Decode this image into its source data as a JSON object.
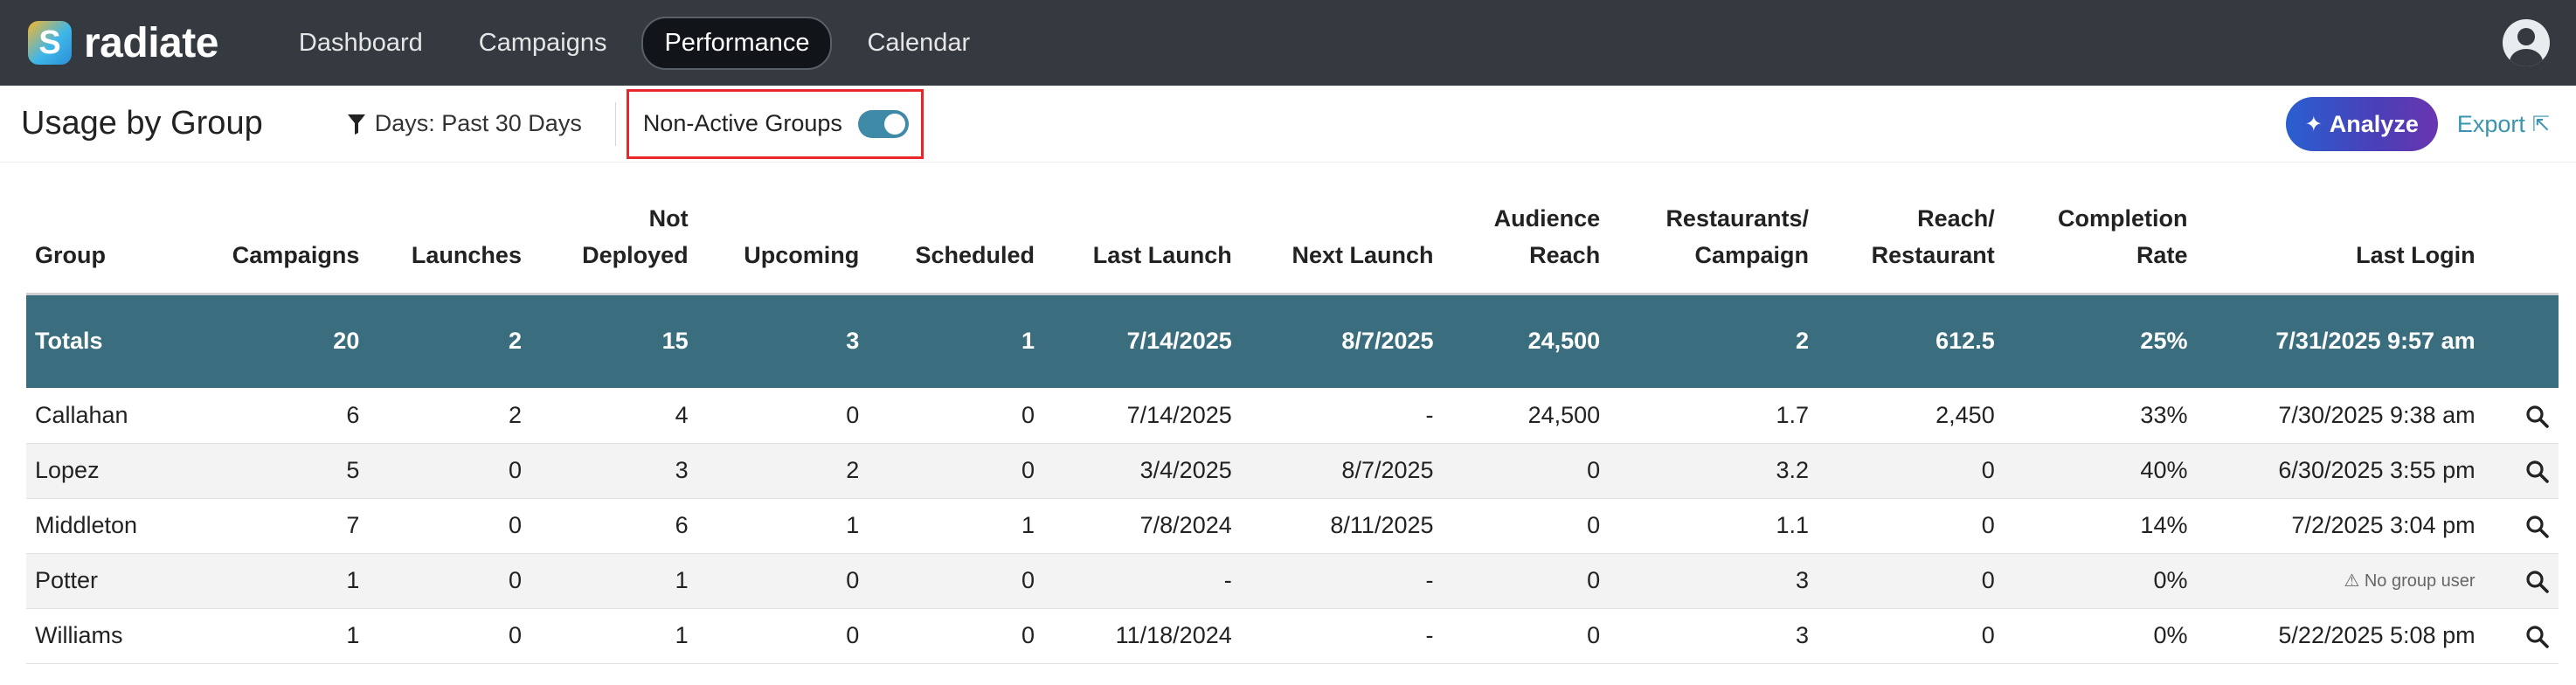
{
  "app": {
    "name": "radiate",
    "logo_letter": "S"
  },
  "nav": {
    "tabs": [
      {
        "label": "Dashboard"
      },
      {
        "label": "Campaigns"
      },
      {
        "label": "Performance"
      },
      {
        "label": "Calendar"
      }
    ],
    "active": "Performance"
  },
  "header": {
    "title": "Usage by Group",
    "filter_label": "Days: Past 30 Days",
    "toggle_label": "Non-Active Groups",
    "toggle_on": true,
    "analyze_label": "Analyze",
    "export_label": "Export"
  },
  "table": {
    "columns": {
      "group": "Group",
      "campaigns": "Campaigns",
      "launches": "Launches",
      "not_deployed_1": "Not",
      "not_deployed_2": "Deployed",
      "upcoming": "Upcoming",
      "scheduled": "Scheduled",
      "last_launch": "Last Launch",
      "next_launch": "Next Launch",
      "audience_1": "Audience",
      "audience_2": "Reach",
      "rpc_1": "Restaurants/",
      "rpc_2": "Campaign",
      "rpr_1": "Reach/",
      "rpr_2": "Restaurant",
      "completion_1": "Completion",
      "completion_2": "Rate",
      "last_login": "Last Login"
    },
    "totals": {
      "group": "Totals",
      "campaigns": "20",
      "launches": "2",
      "not_deployed": "15",
      "upcoming": "3",
      "scheduled": "1",
      "last_launch": "7/14/2025",
      "next_launch": "8/7/2025",
      "audience_reach": "24,500",
      "restaurants_per_campaign": "2",
      "reach_per_restaurant": "612.5",
      "completion_rate": "25%",
      "last_login": "7/31/2025 9:57 am"
    },
    "rows": [
      {
        "group": "Callahan",
        "campaigns": "6",
        "launches": "2",
        "not_deployed": "4",
        "upcoming": "0",
        "scheduled": "0",
        "last_launch": "7/14/2025",
        "next_launch": "-",
        "audience_reach": "24,500",
        "restaurants_per_campaign": "1.7",
        "reach_per_restaurant": "2,450",
        "completion_rate": "33%",
        "last_login": "7/30/2025 9:38 am"
      },
      {
        "group": "Lopez",
        "campaigns": "5",
        "launches": "0",
        "not_deployed": "3",
        "upcoming": "2",
        "scheduled": "0",
        "last_launch": "3/4/2025",
        "next_launch": "8/7/2025",
        "audience_reach": "0",
        "restaurants_per_campaign": "3.2",
        "reach_per_restaurant": "0",
        "completion_rate": "40%",
        "last_login": "6/30/2025 3:55 pm"
      },
      {
        "group": "Middleton",
        "campaigns": "7",
        "launches": "0",
        "not_deployed": "6",
        "upcoming": "1",
        "scheduled": "1",
        "last_launch": "7/8/2024",
        "next_launch": "8/11/2025",
        "audience_reach": "0",
        "restaurants_per_campaign": "1.1",
        "reach_per_restaurant": "0",
        "completion_rate": "14%",
        "last_login": "7/2/2025 3:04 pm"
      },
      {
        "group": "Potter",
        "campaigns": "1",
        "launches": "0",
        "not_deployed": "1",
        "upcoming": "0",
        "scheduled": "0",
        "last_launch": "-",
        "next_launch": "-",
        "audience_reach": "0",
        "restaurants_per_campaign": "3",
        "reach_per_restaurant": "0",
        "completion_rate": "0%",
        "last_login": "⚠ No group user"
      },
      {
        "group": "Williams",
        "campaigns": "1",
        "launches": "0",
        "not_deployed": "1",
        "upcoming": "0",
        "scheduled": "0",
        "last_launch": "11/18/2024",
        "next_launch": "-",
        "audience_reach": "0",
        "restaurants_per_campaign": "3",
        "reach_per_restaurant": "0",
        "completion_rate": "0%",
        "last_login": "5/22/2025 5:08 pm"
      }
    ]
  }
}
